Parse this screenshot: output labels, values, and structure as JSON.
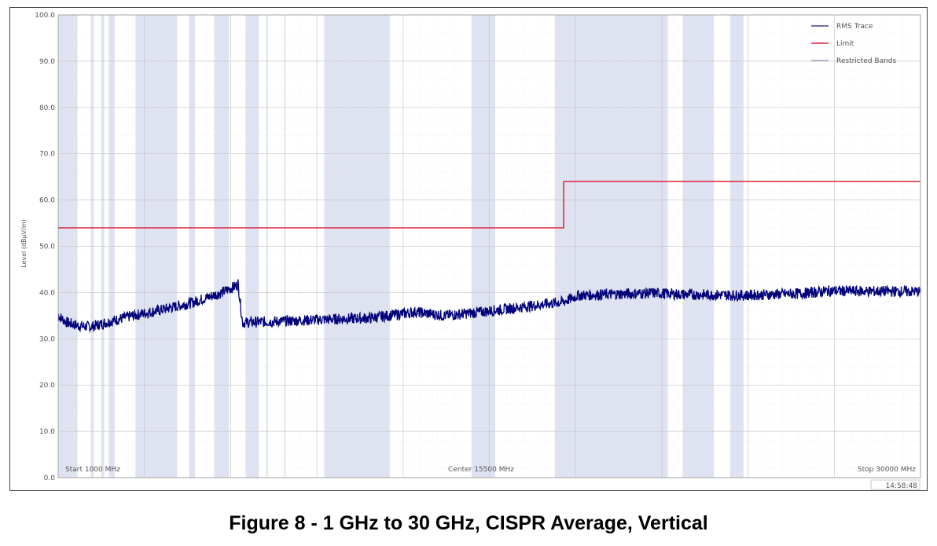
{
  "chart_data": {
    "type": "line",
    "title": "",
    "xlabel": "",
    "ylabel": "Level (dBµV/m)",
    "xlim": [
      1000,
      30000
    ],
    "ylim": [
      0,
      100
    ],
    "y_ticks": [
      "0.0",
      "10.0",
      "20.0",
      "30.0",
      "40.0",
      "50.0",
      "60.0",
      "70.0",
      "80.0",
      "90.0",
      "100.0"
    ],
    "x_annotations": {
      "start": "Start 1000 MHz",
      "center": "Center 15500 MHz",
      "stop": "Stop 30000 MHz"
    },
    "timestamp": "14:58:48",
    "grid": true,
    "legend_position": "top-right",
    "legend": [
      {
        "name": "RMS Trace",
        "color": "#1a1a7a"
      },
      {
        "name": "Limit",
        "color": "#d9233b"
      },
      {
        "name": "Restricted Bands",
        "color": "#dfe3f1"
      }
    ],
    "series": [
      {
        "name": "Limit",
        "color": "#d9233b",
        "x": [
          1000,
          18000,
          18000,
          30000
        ],
        "y": [
          54,
          54,
          64,
          64
        ]
      },
      {
        "name": "RMS Trace",
        "color": "#00007a",
        "x": [
          1000,
          1300,
          1700,
          2100,
          2600,
          3500,
          4500,
          5500,
          6500,
          7000,
          7050,
          7200,
          8500,
          10000,
          11500,
          13000,
          14000,
          15500,
          17000,
          18000,
          18500,
          20000,
          21000,
          22000,
          24000,
          26000,
          27000,
          28000,
          30000
        ],
        "y": [
          35.0,
          33.5,
          32.8,
          32.6,
          33.5,
          35.0,
          36.3,
          37.8,
          40.0,
          41.5,
          42.0,
          33.5,
          33.8,
          34.2,
          34.5,
          35.8,
          35.0,
          36.0,
          37.2,
          38.0,
          39.4,
          39.7,
          39.9,
          39.6,
          39.4,
          39.8,
          40.4,
          40.3,
          40.2
        ]
      }
    ],
    "restricted_bands_mhz": [
      [
        1000,
        1650
      ],
      [
        2100,
        2200
      ],
      [
        2450,
        2550
      ],
      [
        2700,
        2900
      ],
      [
        3600,
        5000
      ],
      [
        5400,
        5600
      ],
      [
        6250,
        6750
      ],
      [
        7300,
        7750
      ],
      [
        8000,
        8050
      ],
      [
        8600,
        8650
      ],
      [
        9950,
        12150
      ],
      [
        14900,
        15700
      ],
      [
        17700,
        21500
      ],
      [
        22000,
        23050
      ],
      [
        23600,
        24050
      ]
    ]
  }
}
